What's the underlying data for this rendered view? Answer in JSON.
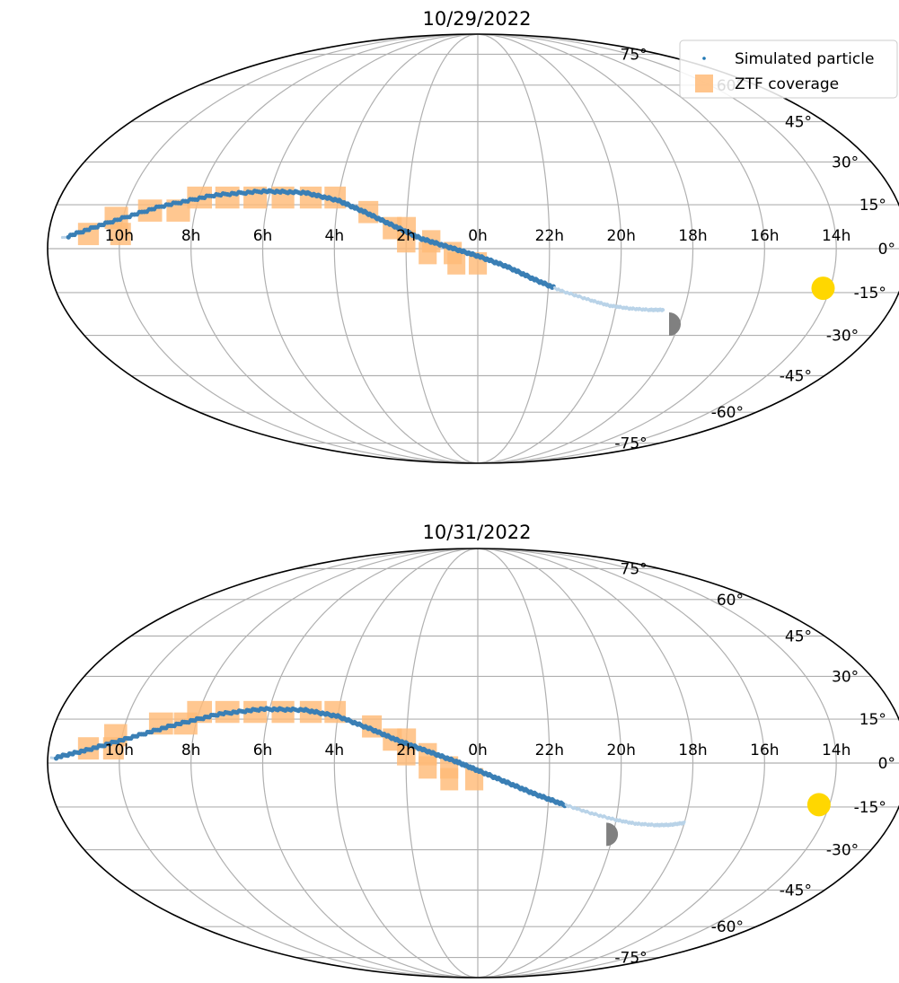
{
  "chart_data": [
    {
      "type": "scatter",
      "projection": "mollweide",
      "title": "10/29/2022",
      "ra_tick_labels": [
        "10h",
        "8h",
        "6h",
        "4h",
        "2h",
        "0h",
        "22h",
        "20h",
        "18h",
        "16h",
        "14h"
      ],
      "ra_tick_hours": [
        10,
        8,
        6,
        4,
        2,
        0,
        22,
        20,
        18,
        16,
        14
      ],
      "dec_tick_labels": [
        "-75°",
        "-60°",
        "-45°",
        "-30°",
        "-15°",
        "0°",
        "15°",
        "30°",
        "45°",
        "60°",
        "75°"
      ],
      "dec_tick_values": [
        -75,
        -60,
        -45,
        -30,
        -15,
        0,
        15,
        30,
        45,
        60,
        75
      ],
      "grid": true,
      "legend": {
        "placement": "top-right",
        "entries": [
          {
            "label": "Simulated particle",
            "color": "#1f77b4",
            "marker": "point"
          },
          {
            "label": "ZTF coverage",
            "color": "#ffbb78",
            "marker": "square"
          }
        ]
      },
      "particle_track": {
        "ra_hours": [
          11.6,
          10.4,
          9.0,
          7.6,
          6.2,
          5.0,
          4.0,
          3.2,
          2.4,
          1.6,
          0.8,
          0.0,
          23.2,
          22.4,
          21.6,
          20.8,
          20.2,
          19.6,
          19.0,
          18.6
        ],
        "dec_deg": [
          3.5,
          8.8,
          14.5,
          18.3,
          19.7,
          19.2,
          16.5,
          12.5,
          8.0,
          3.5,
          0.5,
          -2.5,
          -6.0,
          -10.5,
          -14.5,
          -17.5,
          -19.5,
          -20.5,
          -21.0,
          -21.0
        ]
      },
      "ztf_fields": [
        {
          "ra": 10.9,
          "dec": 5.0
        },
        {
          "ra": 10.0,
          "dec": 5.0
        },
        {
          "ra": 10.2,
          "dec": 10.5
        },
        {
          "ra": 9.3,
          "dec": 13.0
        },
        {
          "ra": 8.5,
          "dec": 13.0
        },
        {
          "ra": 8.0,
          "dec": 17.5
        },
        {
          "ra": 7.2,
          "dec": 17.5
        },
        {
          "ra": 6.4,
          "dec": 17.5
        },
        {
          "ra": 5.6,
          "dec": 17.5
        },
        {
          "ra": 4.8,
          "dec": 17.5
        },
        {
          "ra": 4.1,
          "dec": 17.5
        },
        {
          "ra": 3.1,
          "dec": 12.5
        },
        {
          "ra": 2.4,
          "dec": 7.0
        },
        {
          "ra": 2.0,
          "dec": 7.0
        },
        {
          "ra": 2.0,
          "dec": 2.5
        },
        {
          "ra": 1.3,
          "dec": 2.5
        },
        {
          "ra": 1.4,
          "dec": -1.5
        },
        {
          "ra": 0.7,
          "dec": -1.5
        },
        {
          "ra": 0.6,
          "dec": -5.0
        },
        {
          "ra": 0.0,
          "dec": -5.0
        }
      ],
      "sun": {
        "ra_hours": 14.2,
        "dec_deg": -13.5,
        "color": "#ffd700"
      },
      "moon": {
        "ra_hours": 18.3,
        "dec_deg": -26.0,
        "phase": "half",
        "color": "#808080"
      },
      "colors": {
        "particle": "#3a7fb5",
        "particle_faint": "#b9d3e8",
        "ztf": "#ffbb78",
        "grid": "#b0b0b0",
        "frame": "#000000"
      }
    },
    {
      "type": "scatter",
      "projection": "mollweide",
      "title": "10/31/2022",
      "ra_tick_labels": [
        "10h",
        "8h",
        "6h",
        "4h",
        "2h",
        "0h",
        "22h",
        "20h",
        "18h",
        "16h",
        "14h"
      ],
      "ra_tick_hours": [
        10,
        8,
        6,
        4,
        2,
        0,
        22,
        20,
        18,
        16,
        14
      ],
      "dec_tick_labels": [
        "-75°",
        "-60°",
        "-45°",
        "-30°",
        "-15°",
        "0°",
        "15°",
        "30°",
        "45°",
        "60°",
        "75°"
      ],
      "dec_tick_values": [
        -75,
        -60,
        -45,
        -30,
        -15,
        0,
        15,
        30,
        45,
        60,
        75
      ],
      "grid": true,
      "particle_track": {
        "ra_hours": [
          11.9,
          10.9,
          9.8,
          8.6,
          7.4,
          6.2,
          5.0,
          4.0,
          3.0,
          2.2,
          1.4,
          0.6,
          0.0,
          23.2,
          22.4,
          21.6,
          20.8,
          20.0,
          19.4,
          18.8,
          18.4,
          18.0
        ],
        "dec_deg": [
          1.5,
          4.5,
          8.5,
          13.0,
          16.8,
          18.5,
          18.2,
          16.0,
          11.5,
          7.5,
          4.0,
          0.5,
          -2.5,
          -6.5,
          -10.5,
          -14.0,
          -17.0,
          -19.5,
          -20.8,
          -21.3,
          -21.2,
          -20.5
        ]
      },
      "ztf_fields": [
        {
          "ra": 10.9,
          "dec": 5.0
        },
        {
          "ra": 10.2,
          "dec": 5.0
        },
        {
          "ra": 10.2,
          "dec": 9.5
        },
        {
          "ra": 9.0,
          "dec": 13.5
        },
        {
          "ra": 8.3,
          "dec": 13.5
        },
        {
          "ra": 8.0,
          "dec": 17.5
        },
        {
          "ra": 7.2,
          "dec": 17.5
        },
        {
          "ra": 6.4,
          "dec": 17.5
        },
        {
          "ra": 5.6,
          "dec": 17.5
        },
        {
          "ra": 4.8,
          "dec": 17.5
        },
        {
          "ra": 4.1,
          "dec": 17.5
        },
        {
          "ra": 3.0,
          "dec": 12.5
        },
        {
          "ra": 2.4,
          "dec": 8.0
        },
        {
          "ra": 2.0,
          "dec": 8.0
        },
        {
          "ra": 2.0,
          "dec": 3.0
        },
        {
          "ra": 1.4,
          "dec": 3.0
        },
        {
          "ra": 1.4,
          "dec": -1.5
        },
        {
          "ra": 0.8,
          "dec": -1.5
        },
        {
          "ra": 0.8,
          "dec": -5.5
        },
        {
          "ra": 0.1,
          "dec": -5.5
        }
      ],
      "sun": {
        "ra_hours": 14.3,
        "dec_deg": -14.2,
        "color": "#ffd700"
      },
      "moon": {
        "ra_hours": 20.2,
        "dec_deg": -24.5,
        "phase": "half",
        "color": "#808080"
      },
      "colors": {
        "particle": "#3a7fb5",
        "particle_faint": "#b9d3e8",
        "ztf": "#ffbb78",
        "grid": "#b0b0b0",
        "frame": "#000000"
      }
    }
  ]
}
